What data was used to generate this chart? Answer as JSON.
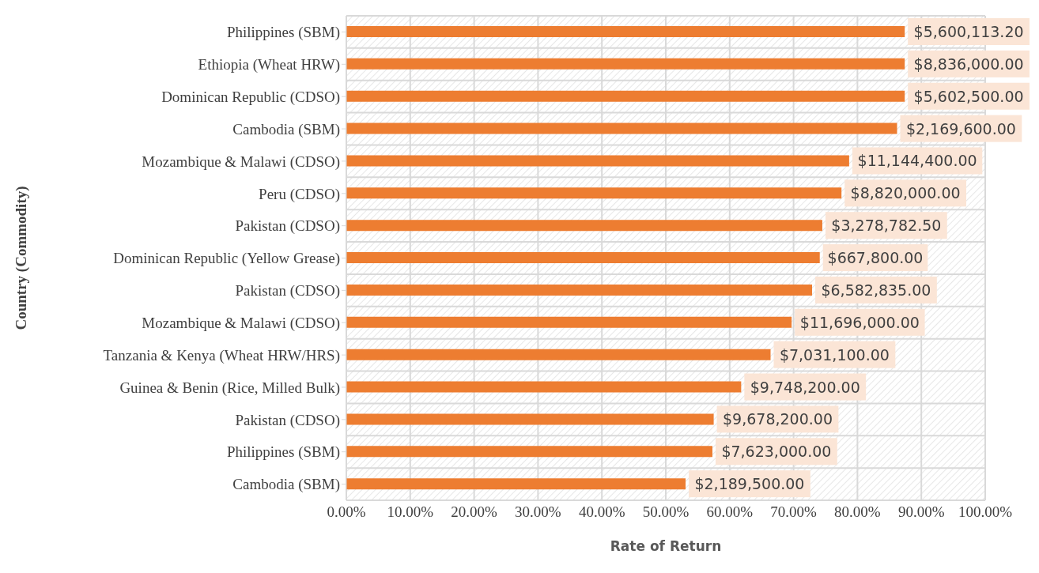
{
  "chart_data": {
    "type": "bar",
    "orientation": "horizontal",
    "xlabel": "Rate of Return",
    "ylabel": "Country (Commodity)",
    "categories": [
      "Philippines (SBM)",
      "Ethiopia (Wheat HRW)",
      "Dominican Republic (CDSO)",
      "Cambodia (SBM)",
      "Mozambique & Malawi (CDSO)",
      "Peru (CDSO)",
      "Pakistan (CDSO)",
      "Dominican Republic (Yellow Grease)",
      "Pakistan (CDSO)",
      "Mozambique & Malawi (CDSO)",
      "Tanzania & Kenya (Wheat HRW/HRS)",
      "Guinea & Benin (Rice, Milled Bulk)",
      "Pakistan (CDSO)",
      "Philippines (SBM)",
      "Cambodia (SBM)"
    ],
    "values": [
      87.4,
      87.4,
      87.4,
      86.2,
      78.7,
      77.5,
      74.5,
      74.1,
      72.9,
      69.7,
      66.4,
      61.8,
      57.5,
      57.3,
      53.1
    ],
    "annotations": [
      "$5,600,113.20",
      "$8,836,000.00",
      "$5,602,500.00",
      "$2,169,600.00",
      "$11,144,400.00",
      "$8,820,000.00",
      "$3,278,782.50",
      "$667,800.00",
      "$6,582,835.00",
      "$11,696,000.00",
      "$7,031,100.00",
      "$9,748,200.00",
      "$9,678,200.00",
      "$7,623,000.00",
      "$2,189,500.00"
    ],
    "color": "#ed7d31",
    "xlim": [
      0,
      100
    ],
    "xticks": [
      {
        "value": 0,
        "label": "0.00%"
      },
      {
        "value": 10,
        "label": "10.00%"
      },
      {
        "value": 20,
        "label": "20.00%"
      },
      {
        "value": 30,
        "label": "30.00%"
      },
      {
        "value": 40,
        "label": "40.00%"
      },
      {
        "value": 50,
        "label": "50.00%"
      },
      {
        "value": 60,
        "label": "60.00%"
      },
      {
        "value": 70,
        "label": "70.00%"
      },
      {
        "value": 80,
        "label": "80.00%"
      },
      {
        "value": 90,
        "label": "90.00%"
      },
      {
        "value": 100,
        "label": "100.00%"
      }
    ],
    "grid": true,
    "legend": false
  }
}
